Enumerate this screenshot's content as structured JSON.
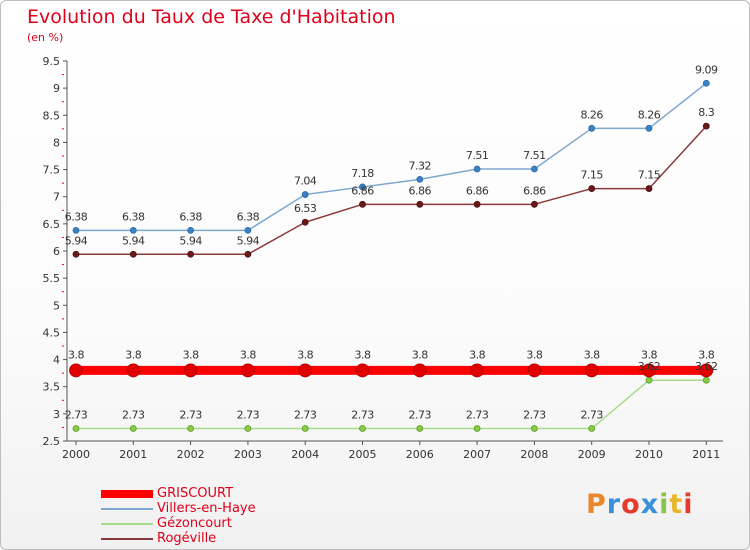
{
  "header": {
    "title": "Evolution du Taux de Taxe d'Habitation",
    "subtitle": "(en %)"
  },
  "logo": {
    "text": "Proxiti",
    "colors": [
      "#e8882a",
      "#3a8fd8",
      "#e43c2c",
      "#3a8fd8",
      "#88c34a",
      "#e8b62a",
      "#e43c2c"
    ]
  },
  "chart_data": {
    "type": "line",
    "title": "Evolution du Taux de Taxe d'Habitation",
    "ylabel": "(en %)",
    "xlabel": "",
    "x": [
      "2000",
      "2001",
      "2002",
      "2003",
      "2004",
      "2005",
      "2006",
      "2007",
      "2008",
      "2009",
      "2010",
      "2011"
    ],
    "ylim": [
      2.5,
      9.5
    ],
    "yticks": [
      "2.5",
      "3",
      "3.5",
      "4",
      "4.5",
      "5",
      "5.5",
      "6",
      "6.5",
      "7",
      "7.5",
      "8",
      "8.5",
      "9",
      "9.5"
    ],
    "grid": false,
    "legend_position": "bottom-left",
    "series": [
      {
        "name": "GRISCOURT",
        "color": "#ff0000",
        "values": [
          3.8,
          3.8,
          3.8,
          3.8,
          3.8,
          3.8,
          3.8,
          3.8,
          3.8,
          3.8,
          3.8,
          3.8
        ],
        "labels": [
          "3.8",
          "3.8",
          "3.8",
          "3.8",
          "3.8",
          "3.8",
          "3.8",
          "3.8",
          "3.8",
          "3.8",
          "3.8",
          "3.8"
        ]
      },
      {
        "name": "Villers-en-Haye",
        "color": "#7fa8cf",
        "values": [
          6.38,
          6.38,
          6.38,
          6.38,
          7.04,
          7.18,
          7.32,
          7.51,
          7.51,
          8.26,
          8.26,
          9.09
        ],
        "labels": [
          "6.38",
          "6.38",
          "6.38",
          "6.38",
          "7.04",
          "7.18",
          "7.32",
          "7.51",
          "7.51",
          "8.26",
          "8.26",
          "9.09"
        ]
      },
      {
        "name": "Gézoncourt",
        "color": "#a8dc8c",
        "values": [
          2.73,
          2.73,
          2.73,
          2.73,
          2.73,
          2.73,
          2.73,
          2.73,
          2.73,
          2.73,
          3.62,
          3.62
        ],
        "labels": [
          "2.73",
          "2.73",
          "2.73",
          "2.73",
          "2.73",
          "2.73",
          "2.73",
          "2.73",
          "2.73",
          "2.73",
          "3.62",
          "3.62"
        ]
      },
      {
        "name": "Rogéville",
        "color": "#8b3a3a",
        "values": [
          5.94,
          5.94,
          5.94,
          5.94,
          6.53,
          6.86,
          6.86,
          6.86,
          6.86,
          7.15,
          7.15,
          8.3
        ],
        "labels": [
          "5.94",
          "5.94",
          "5.94",
          "5.94",
          "6.53",
          "6.86",
          "6.86",
          "6.86",
          "6.86",
          "7.15",
          "7.15",
          "8.3"
        ]
      }
    ]
  }
}
